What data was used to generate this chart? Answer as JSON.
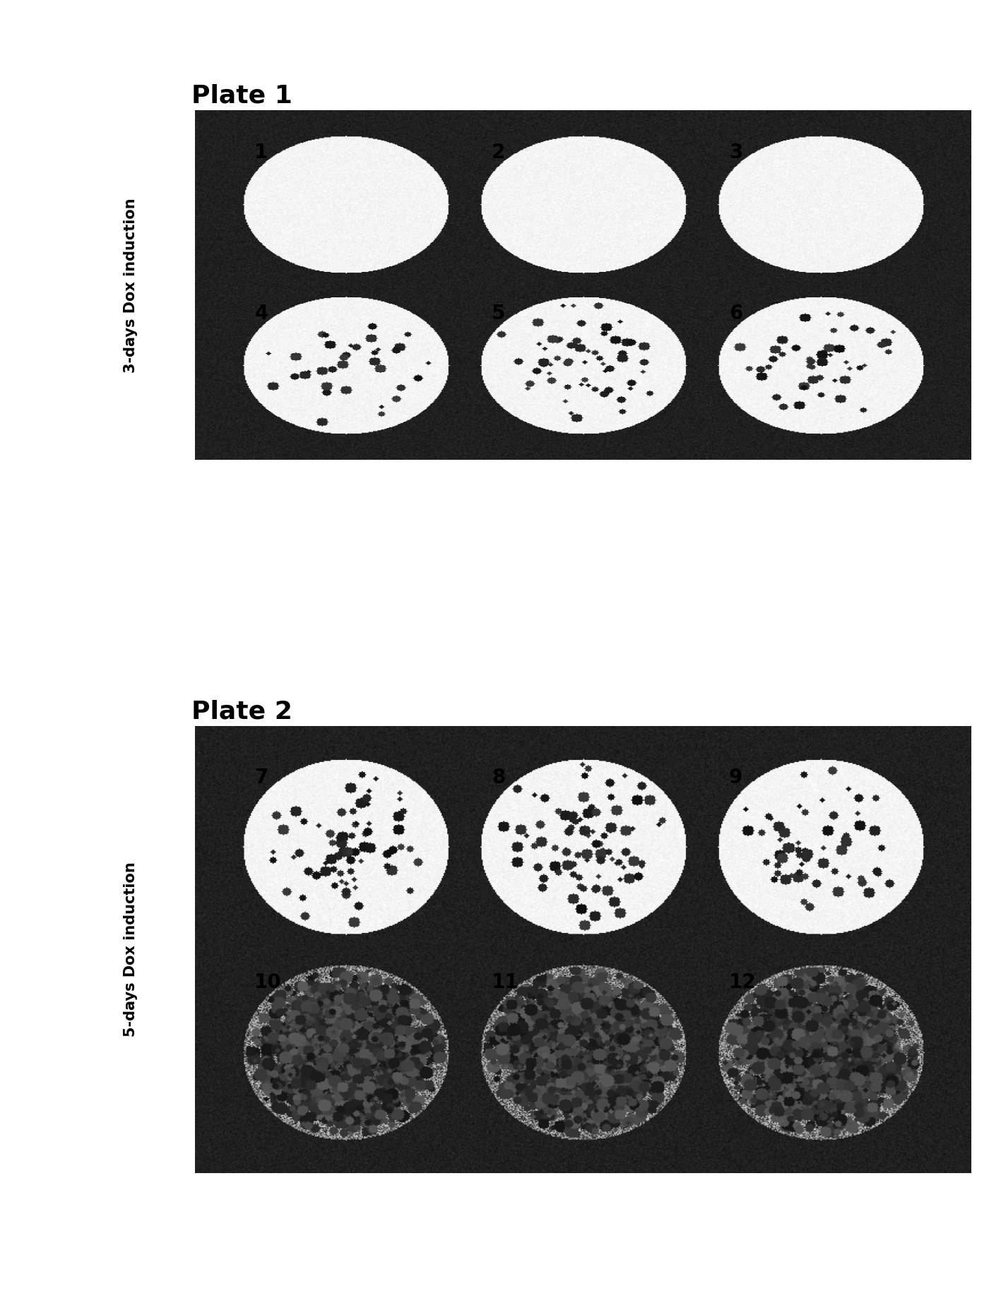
{
  "figure_bg": "#ffffff",
  "plate1_title": "Plate 1",
  "plate2_title": "Plate 2",
  "label1": "3-days Dox induction",
  "label2": "5-days Dox induction",
  "title_fontsize": 26,
  "label_fontsize": 15,
  "well_label_fontsize": 20,
  "plate1_wells": [
    {
      "label": "1",
      "density": 0.0,
      "row": 0,
      "col": 0
    },
    {
      "label": "2",
      "density": 0.0,
      "row": 0,
      "col": 1
    },
    {
      "label": "3",
      "density": 0.0,
      "row": 0,
      "col": 2
    },
    {
      "label": "4",
      "density": 0.06,
      "row": 1,
      "col": 0
    },
    {
      "label": "5",
      "density": 0.1,
      "row": 1,
      "col": 1
    },
    {
      "label": "6",
      "density": 0.08,
      "row": 1,
      "col": 2
    }
  ],
  "plate2_wells": [
    {
      "label": "7",
      "density": 0.12,
      "row": 0,
      "col": 0
    },
    {
      "label": "8",
      "density": 0.15,
      "row": 0,
      "col": 1
    },
    {
      "label": "9",
      "density": 0.1,
      "row": 0,
      "col": 2
    },
    {
      "label": "10",
      "density": 0.9,
      "row": 1,
      "col": 0
    },
    {
      "label": "11",
      "density": 0.92,
      "row": 1,
      "col": 1
    },
    {
      "label": "12",
      "density": 0.88,
      "row": 1,
      "col": 2
    }
  ]
}
